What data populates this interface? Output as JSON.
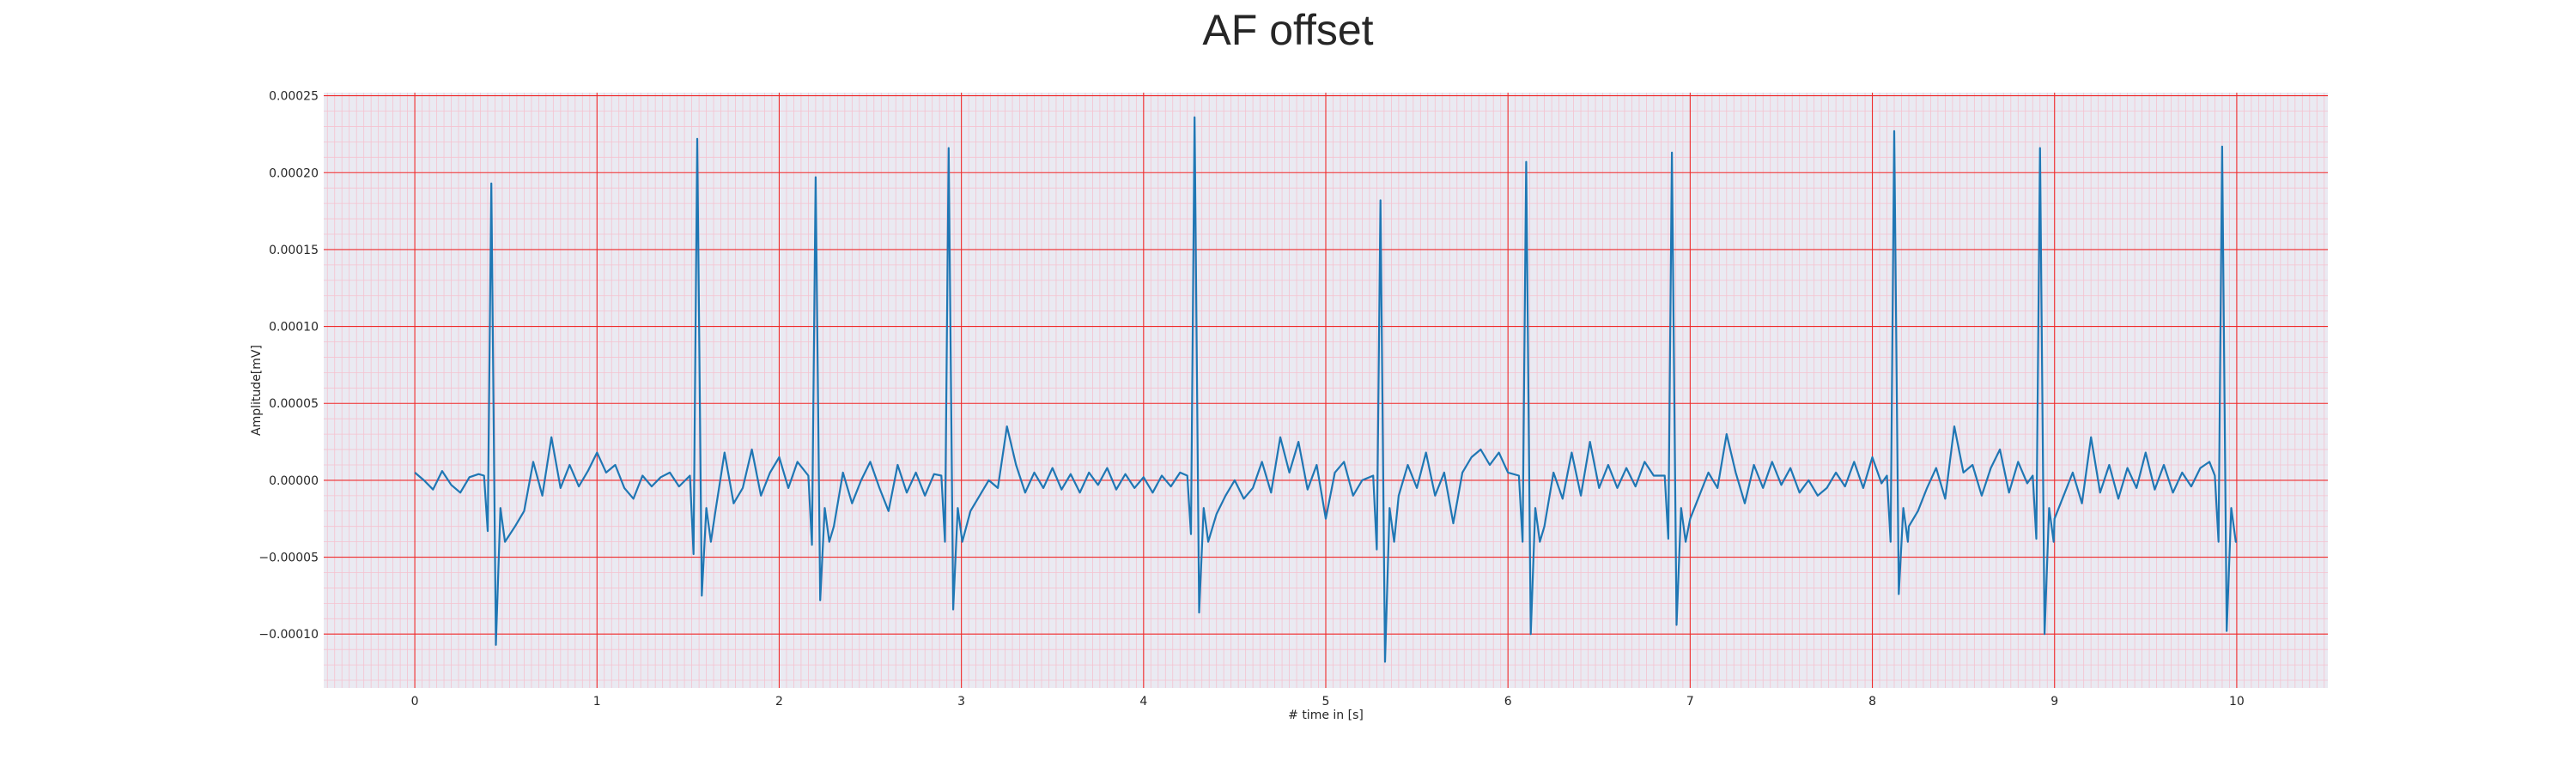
{
  "chart_data": {
    "type": "line",
    "title": "AF offset",
    "xlabel": "# time in [s]",
    "ylabel": "Amplitude[mV]",
    "xlim": [
      -0.5,
      10.5
    ],
    "ylim": [
      -0.000135,
      0.000252
    ],
    "x_ticks": [
      0,
      1,
      2,
      3,
      4,
      5,
      6,
      7,
      8,
      9,
      10
    ],
    "x_tick_labels": [
      "0",
      "1",
      "2",
      "3",
      "4",
      "5",
      "6",
      "7",
      "8",
      "9",
      "10"
    ],
    "y_ticks": [
      -0.0001,
      -5e-05,
      0,
      5e-05,
      0.0001,
      0.00015,
      0.0002,
      0.00025
    ],
    "y_tick_labels": [
      "−0.00010",
      "−0.00005",
      "0.00000",
      "0.00005",
      "0.00010",
      "0.00015",
      "0.00020",
      "0.00025"
    ],
    "grid": {
      "major": true,
      "minor": true
    },
    "series": [
      {
        "color": "#1f77b4",
        "beats": [
          {
            "t": 0.42,
            "r": 0.000193,
            "q": -3.3e-05,
            "s": -0.000107
          },
          {
            "t": 1.55,
            "r": 0.000222,
            "q": -4.8e-05,
            "s": -7.5e-05
          },
          {
            "t": 2.2,
            "r": 0.000197,
            "q": -4.2e-05,
            "s": -7.8e-05
          },
          {
            "t": 2.93,
            "r": 0.000216,
            "q": -4e-05,
            "s": -8.4e-05
          },
          {
            "t": 4.28,
            "r": 0.000236,
            "q": -3.5e-05,
            "s": -8.6e-05
          },
          {
            "t": 5.3,
            "r": 0.000182,
            "q": -4.5e-05,
            "s": -0.000118
          },
          {
            "t": 6.1,
            "r": 0.000207,
            "q": -4e-05,
            "s": -0.0001
          },
          {
            "t": 6.9,
            "r": 0.000213,
            "q": -3.8e-05,
            "s": -9.4e-05
          },
          {
            "t": 8.12,
            "r": 0.000227,
            "q": -4e-05,
            "s": -7.4e-05
          },
          {
            "t": 8.92,
            "r": 0.000216,
            "q": -3.8e-05,
            "s": -0.0001
          },
          {
            "t": 9.92,
            "r": 0.000217,
            "q": -4e-05,
            "s": -9.8e-05
          }
        ],
        "baseline_points": [
          [
            0.0,
            5e-06
          ],
          [
            0.05,
            0.0
          ],
          [
            0.1,
            -6e-06
          ],
          [
            0.15,
            6e-06
          ],
          [
            0.2,
            -3e-06
          ],
          [
            0.25,
            -8e-06
          ],
          [
            0.3,
            2e-06
          ],
          [
            0.35,
            4e-06
          ],
          [
            0.55,
            -3e-05
          ],
          [
            0.6,
            -2e-05
          ],
          [
            0.65,
            1.2e-05
          ],
          [
            0.7,
            -1e-05
          ],
          [
            0.75,
            2.8e-05
          ],
          [
            0.8,
            -5e-06
          ],
          [
            0.85,
            1e-05
          ],
          [
            0.9,
            -4e-06
          ],
          [
            0.95,
            6e-06
          ],
          [
            1.0,
            1.8e-05
          ],
          [
            1.05,
            5e-06
          ],
          [
            1.1,
            1e-05
          ],
          [
            1.15,
            -5e-06
          ],
          [
            1.2,
            -1.2e-05
          ],
          [
            1.25,
            3e-06
          ],
          [
            1.3,
            -4e-06
          ],
          [
            1.35,
            2e-06
          ],
          [
            1.4,
            5e-06
          ],
          [
            1.45,
            -4e-06
          ],
          [
            1.65,
            -2e-05
          ],
          [
            1.7,
            1.8e-05
          ],
          [
            1.75,
            -1.5e-05
          ],
          [
            1.8,
            -5e-06
          ],
          [
            1.85,
            2e-05
          ],
          [
            1.9,
            -1e-05
          ],
          [
            1.95,
            5e-06
          ],
          [
            2.0,
            1.5e-05
          ],
          [
            2.05,
            -5e-06
          ],
          [
            2.1,
            1.2e-05
          ],
          [
            2.3,
            -3e-05
          ],
          [
            2.35,
            5e-06
          ],
          [
            2.4,
            -1.5e-05
          ],
          [
            2.45,
            0.0
          ],
          [
            2.5,
            1.2e-05
          ],
          [
            2.55,
            -5e-06
          ],
          [
            2.6,
            -2e-05
          ],
          [
            2.65,
            1e-05
          ],
          [
            2.7,
            -8e-06
          ],
          [
            2.75,
            5e-06
          ],
          [
            2.8,
            -1e-05
          ],
          [
            2.85,
            4e-06
          ],
          [
            3.05,
            -2e-05
          ],
          [
            3.1,
            -1e-05
          ],
          [
            3.15,
            0.0
          ],
          [
            3.2,
            -5e-06
          ],
          [
            3.25,
            3.5e-05
          ],
          [
            3.3,
            1e-05
          ],
          [
            3.35,
            -8e-06
          ],
          [
            3.4,
            5e-06
          ],
          [
            3.45,
            -5e-06
          ],
          [
            3.5,
            8e-06
          ],
          [
            3.55,
            -6e-06
          ],
          [
            3.6,
            4e-06
          ],
          [
            3.65,
            -8e-06
          ],
          [
            3.7,
            5e-06
          ],
          [
            3.75,
            -3e-06
          ],
          [
            3.8,
            8e-06
          ],
          [
            3.85,
            -6e-06
          ],
          [
            3.9,
            4e-06
          ],
          [
            3.95,
            -5e-06
          ],
          [
            4.0,
            2e-06
          ],
          [
            4.05,
            -8e-06
          ],
          [
            4.1,
            3e-06
          ],
          [
            4.15,
            -4e-06
          ],
          [
            4.2,
            5e-06
          ],
          [
            4.4,
            -2.2e-05
          ],
          [
            4.45,
            -1e-05
          ],
          [
            4.5,
            0.0
          ],
          [
            4.55,
            -1.2e-05
          ],
          [
            4.6,
            -5e-06
          ],
          [
            4.65,
            1.2e-05
          ],
          [
            4.7,
            -8e-06
          ],
          [
            4.75,
            2.8e-05
          ],
          [
            4.8,
            5e-06
          ],
          [
            4.85,
            2.5e-05
          ],
          [
            4.9,
            -6e-06
          ],
          [
            4.95,
            1e-05
          ],
          [
            5.0,
            -2.5e-05
          ],
          [
            5.05,
            5e-06
          ],
          [
            5.1,
            1.2e-05
          ],
          [
            5.15,
            -1e-05
          ],
          [
            5.2,
            0.0
          ],
          [
            5.4,
            -1e-05
          ],
          [
            5.45,
            1e-05
          ],
          [
            5.5,
            -5e-06
          ],
          [
            5.55,
            1.8e-05
          ],
          [
            5.6,
            -1e-05
          ],
          [
            5.65,
            5e-06
          ],
          [
            5.7,
            -2.8e-05
          ],
          [
            5.75,
            5e-06
          ],
          [
            5.8,
            1.5e-05
          ],
          [
            5.85,
            2e-05
          ],
          [
            5.9,
            1e-05
          ],
          [
            5.95,
            1.8e-05
          ],
          [
            6.0,
            5e-06
          ],
          [
            6.2,
            -3e-05
          ],
          [
            6.25,
            5e-06
          ],
          [
            6.3,
            -1.2e-05
          ],
          [
            6.35,
            1.8e-05
          ],
          [
            6.4,
            -1e-05
          ],
          [
            6.45,
            2.5e-05
          ],
          [
            6.5,
            -5e-06
          ],
          [
            6.55,
            1e-05
          ],
          [
            6.6,
            -5e-06
          ],
          [
            6.65,
            8e-06
          ],
          [
            6.7,
            -4e-06
          ],
          [
            6.75,
            1.2e-05
          ],
          [
            6.8,
            3e-06
          ],
          [
            7.0,
            -2.5e-05
          ],
          [
            7.05,
            -1e-05
          ],
          [
            7.1,
            5e-06
          ],
          [
            7.15,
            -5e-06
          ],
          [
            7.2,
            3e-05
          ],
          [
            7.25,
            5e-06
          ],
          [
            7.3,
            -1.5e-05
          ],
          [
            7.35,
            1e-05
          ],
          [
            7.4,
            -5e-06
          ],
          [
            7.45,
            1.2e-05
          ],
          [
            7.5,
            -3e-06
          ],
          [
            7.55,
            8e-06
          ],
          [
            7.6,
            -8e-06
          ],
          [
            7.65,
            0.0
          ],
          [
            7.7,
            -1e-05
          ],
          [
            7.75,
            -5e-06
          ],
          [
            7.8,
            5e-06
          ],
          [
            7.85,
            -4e-06
          ],
          [
            7.9,
            1.2e-05
          ],
          [
            7.95,
            -5e-06
          ],
          [
            8.0,
            1.5e-05
          ],
          [
            8.05,
            -2e-06
          ],
          [
            8.2,
            -3e-05
          ],
          [
            8.25,
            -2e-05
          ],
          [
            8.3,
            -5e-06
          ],
          [
            8.35,
            8e-06
          ],
          [
            8.4,
            -1.2e-05
          ],
          [
            8.45,
            3.5e-05
          ],
          [
            8.5,
            5e-06
          ],
          [
            8.55,
            1e-05
          ],
          [
            8.6,
            -1e-05
          ],
          [
            8.65,
            8e-06
          ],
          [
            8.7,
            2e-05
          ],
          [
            8.75,
            -8e-06
          ],
          [
            8.8,
            1.2e-05
          ],
          [
            8.85,
            -2e-06
          ],
          [
            9.0,
            -2.5e-05
          ],
          [
            9.05,
            -1e-05
          ],
          [
            9.1,
            5e-06
          ],
          [
            9.15,
            -1.5e-05
          ],
          [
            9.2,
            2.8e-05
          ],
          [
            9.25,
            -8e-06
          ],
          [
            9.3,
            1e-05
          ],
          [
            9.35,
            -1.2e-05
          ],
          [
            9.4,
            8e-06
          ],
          [
            9.45,
            -5e-06
          ],
          [
            9.5,
            1.8e-05
          ],
          [
            9.55,
            -6e-06
          ],
          [
            9.6,
            1e-05
          ],
          [
            9.65,
            -8e-06
          ],
          [
            9.7,
            5e-06
          ],
          [
            9.75,
            -4e-06
          ],
          [
            9.8,
            8e-06
          ],
          [
            9.85,
            1.2e-05
          ],
          [
            10.0,
            -4e-05
          ]
        ]
      }
    ]
  }
}
